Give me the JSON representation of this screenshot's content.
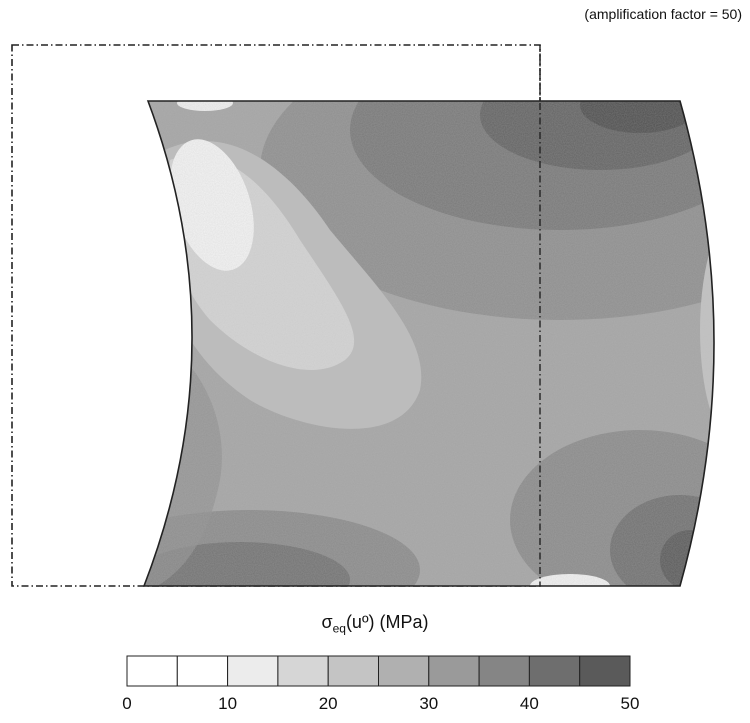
{
  "annotation": "(amplification factor = 50)",
  "field_label": {
    "symbol": "σ",
    "subscript": "eq",
    "argument": "(uº)",
    "unit": "(MPa)"
  },
  "colorbar": {
    "min": 0,
    "max": 50,
    "step": 5,
    "tick_labels": [
      "0",
      "10",
      "20",
      "30",
      "40",
      "50"
    ],
    "bin_colors": [
      "#ffffff",
      "#ffffff",
      "#ececec",
      "#d6d6d6",
      "#c4c4c4",
      "#b0b0b0",
      "#9a9a9a",
      "#858585",
      "#6e6e6e",
      "#5a5a5a"
    ]
  }
}
